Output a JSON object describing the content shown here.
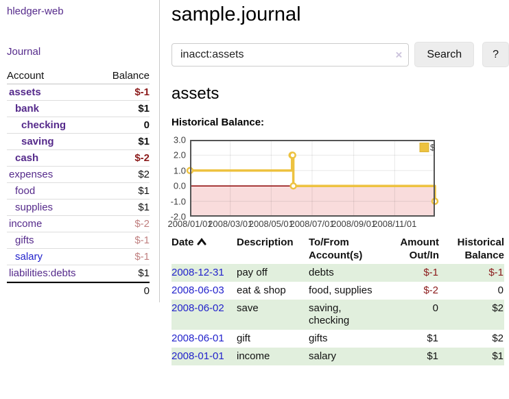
{
  "colors": {
    "link_purple": "#552a8b",
    "link_blue": "#2222cc",
    "negative_strong": "#8b1a1a",
    "negative_soft": "#c08080",
    "stripe_green": "#e1efdd",
    "accent_yellow": "#EDC240"
  },
  "sidebar": {
    "app_title": "hledger-web",
    "journal_label": "Journal",
    "accounts": {
      "account_header": "Account",
      "balance_header": "Balance",
      "rows": [
        {
          "name": "assets",
          "balance": "$-1",
          "level": 1,
          "bold": true,
          "neg": "strong",
          "link": "purple"
        },
        {
          "name": "bank",
          "balance": "$1",
          "level": 2,
          "bold": true,
          "neg": "",
          "link": "purple"
        },
        {
          "name": "checking",
          "balance": "0",
          "level": 3,
          "bold": true,
          "neg": "",
          "link": "purple"
        },
        {
          "name": "saving",
          "balance": "$1",
          "level": 3,
          "bold": true,
          "neg": "",
          "link": "purple"
        },
        {
          "name": "cash",
          "balance": "$-2",
          "level": 2,
          "bold": true,
          "neg": "strong",
          "link": "purple"
        },
        {
          "name": "expenses",
          "balance": "$2",
          "level": 1,
          "bold": false,
          "neg": "",
          "link": "purple"
        },
        {
          "name": "food",
          "balance": "$1",
          "level": 2,
          "bold": false,
          "neg": "",
          "link": "purple"
        },
        {
          "name": "supplies",
          "balance": "$1",
          "level": 2,
          "bold": false,
          "neg": "",
          "link": "purple"
        },
        {
          "name": "income",
          "balance": "$-2",
          "level": 1,
          "bold": false,
          "neg": "soft",
          "link": "purple"
        },
        {
          "name": "gifts",
          "balance": "$-1",
          "level": 2,
          "bold": false,
          "neg": "soft",
          "link": "purple"
        },
        {
          "name": "salary",
          "balance": "$-1",
          "level": 2,
          "bold": false,
          "neg": "soft",
          "link": "blue"
        },
        {
          "name": "liabilities:debts",
          "balance": "$1",
          "level": 1,
          "bold": false,
          "neg": "",
          "link": "purple"
        }
      ],
      "total": "0"
    }
  },
  "main": {
    "title": "sample.journal",
    "search": {
      "value": "inacct:assets",
      "clear_icon": "×",
      "button_label": "Search",
      "help_label": "?"
    },
    "account_heading": "assets",
    "chart_label": "Historical Balance:",
    "register": {
      "columns": [
        {
          "lines": [
            "Date"
          ],
          "align": "left",
          "sort": "asc"
        },
        {
          "lines": [
            "Description"
          ],
          "align": "left",
          "sort": ""
        },
        {
          "lines": [
            "To/From",
            "Account(s)"
          ],
          "align": "left",
          "sort": ""
        },
        {
          "lines": [
            "Amount",
            "Out/In"
          ],
          "align": "right",
          "sort": ""
        },
        {
          "lines": [
            "Historical",
            "Balance"
          ],
          "align": "right",
          "sort": ""
        }
      ],
      "rows": [
        {
          "date": "2008-12-31",
          "description": "pay off",
          "accounts": "debts",
          "amount": "$-1",
          "amount_neg": true,
          "balance": "$-1",
          "balance_neg": true
        },
        {
          "date": "2008-06-03",
          "description": "eat & shop",
          "accounts": "food, supplies",
          "amount": "$-2",
          "amount_neg": true,
          "balance": "0",
          "balance_neg": false
        },
        {
          "date": "2008-06-02",
          "description": "save",
          "accounts": "saving, checking",
          "amount": "0",
          "amount_neg": false,
          "balance": "$2",
          "balance_neg": false
        },
        {
          "date": "2008-06-01",
          "description": "gift",
          "accounts": "gifts",
          "amount": "$1",
          "amount_neg": false,
          "balance": "$2",
          "balance_neg": false
        },
        {
          "date": "2008-01-01",
          "description": "income",
          "accounts": "salary",
          "amount": "$1",
          "amount_neg": false,
          "balance": "$1",
          "balance_neg": false
        }
      ]
    }
  },
  "chart_data": {
    "type": "line",
    "title": "Historical Balance",
    "step": true,
    "series": [
      {
        "name": "$",
        "color": "#EDC240",
        "points": [
          {
            "x": "2008-01-01",
            "y": 1
          },
          {
            "x": "2008-06-01",
            "y": 2
          },
          {
            "x": "2008-06-02",
            "y": 2
          },
          {
            "x": "2008-06-03",
            "y": 0
          },
          {
            "x": "2008-12-31",
            "y": -1
          }
        ]
      }
    ],
    "x_range": [
      "2008-01-01",
      "2008-12-31"
    ],
    "ylim": [
      -2,
      3
    ],
    "yticks": [
      3,
      2,
      1,
      0,
      -1,
      -2
    ],
    "xticks": [
      {
        "date": "2008-01-01",
        "label": "2008/01/01"
      },
      {
        "date": "2008-03-01",
        "label": "2008/03/01"
      },
      {
        "date": "2008-05-01",
        "label": "2008/05/01"
      },
      {
        "date": "2008-07-01",
        "label": "2008/07/01"
      },
      {
        "date": "2008-09-01",
        "label": "2008/09/01"
      },
      {
        "date": "2008-11-01",
        "label": "2008/11/01"
      }
    ],
    "grid": true,
    "legend_position": "top-right",
    "negative_region_color": "#f9dcdc",
    "zero_line_color": "#8b0000",
    "grid_border_color": "#545454"
  }
}
